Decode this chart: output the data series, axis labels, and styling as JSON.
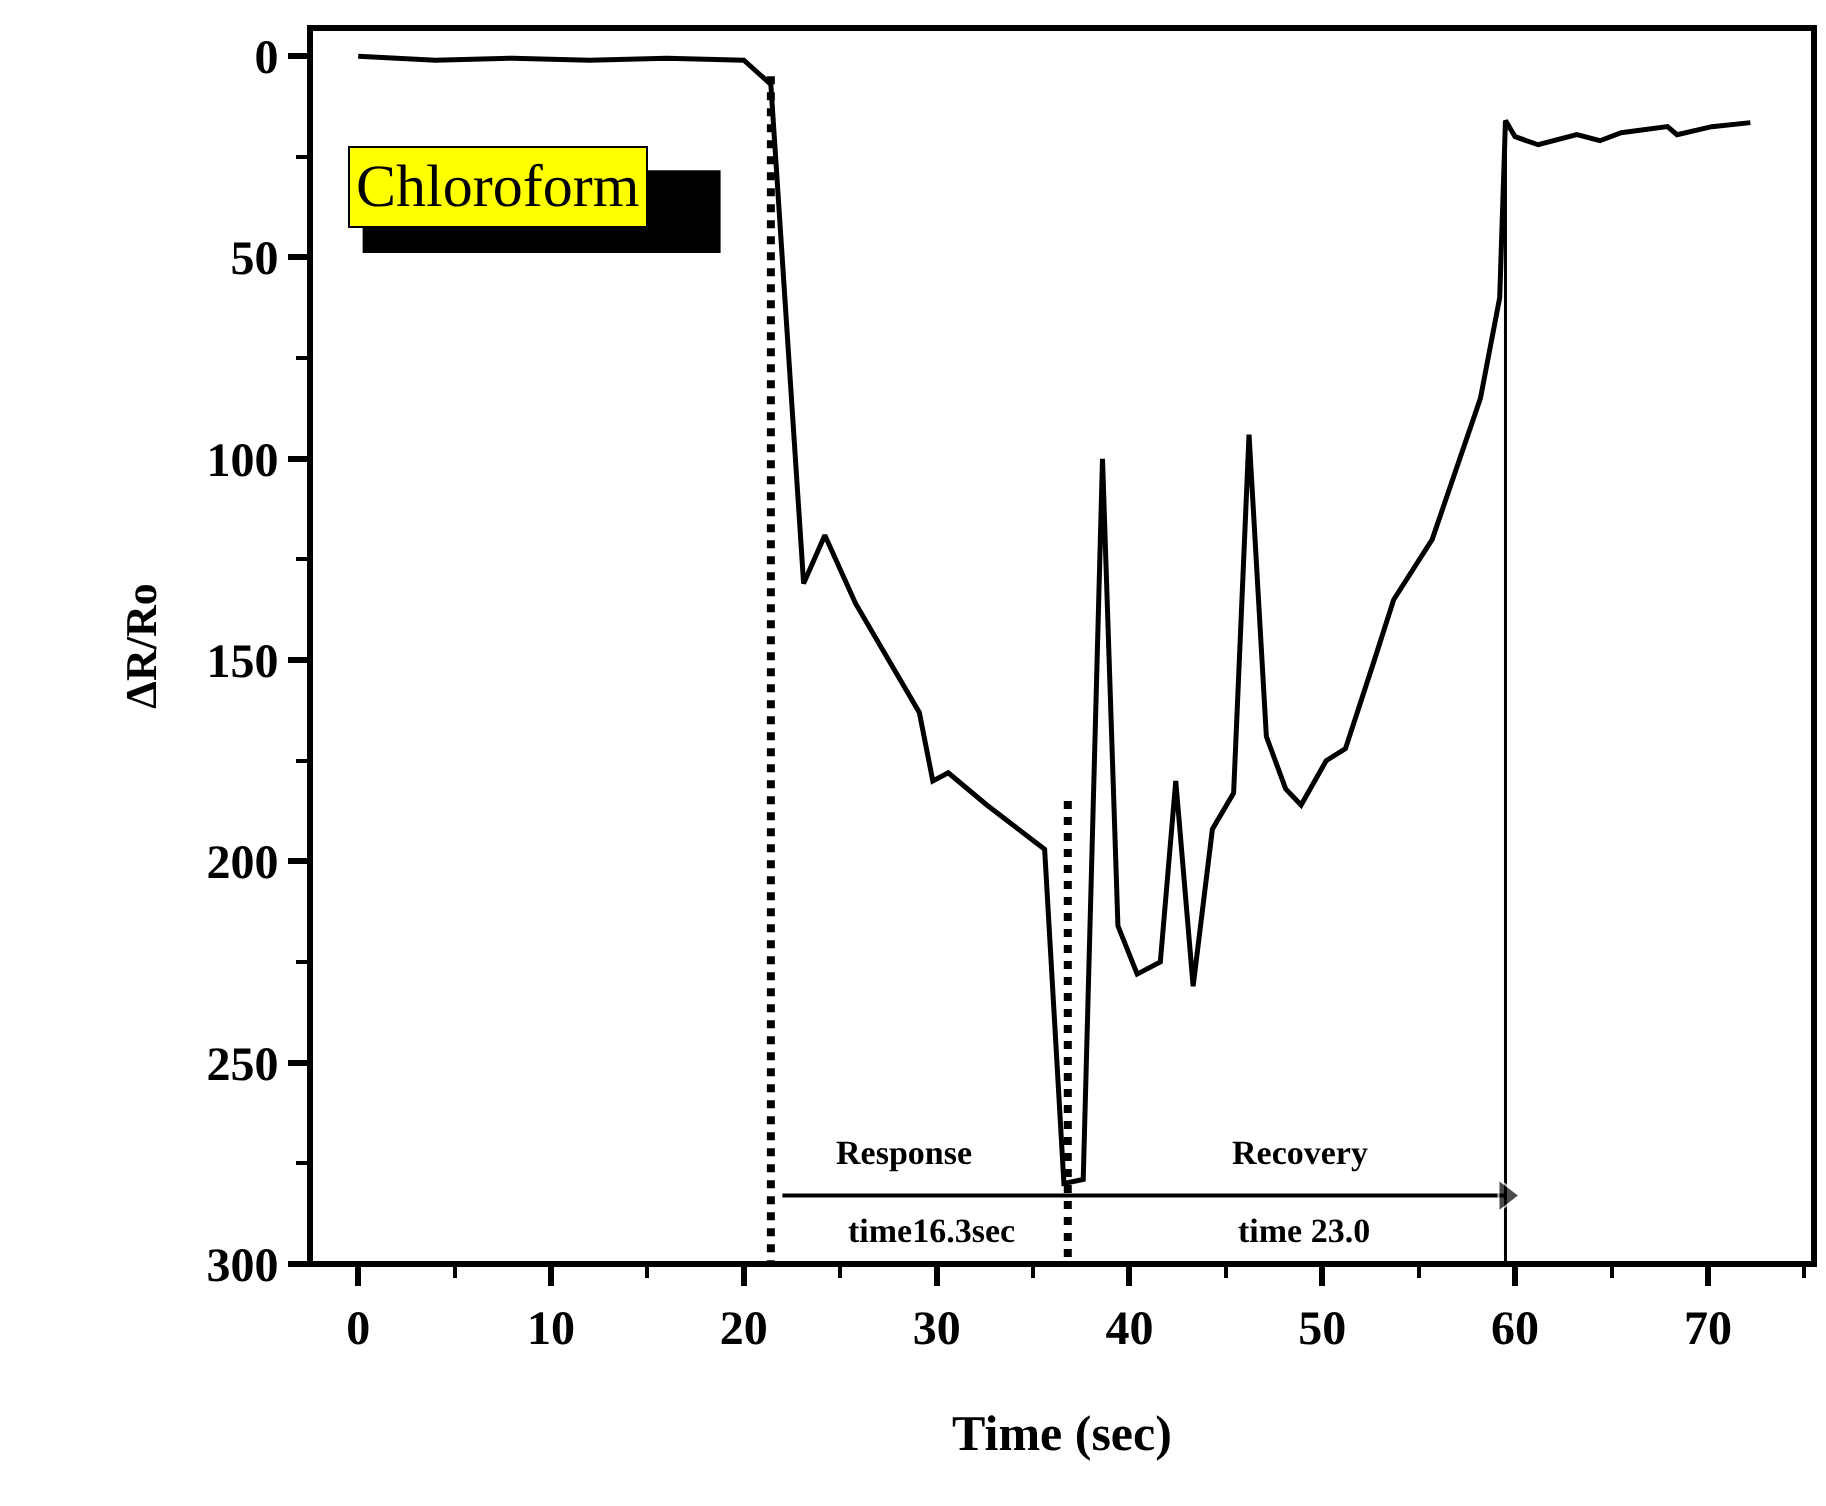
{
  "chart_data": {
    "type": "line",
    "xlabel": "Time (sec)",
    "ylabel": "ΔR/Ro",
    "xlim": [
      -2.5,
      75.5
    ],
    "xticks": [
      0,
      10,
      20,
      30,
      40,
      50,
      60,
      70
    ],
    "ylim": [
      300,
      -7
    ],
    "yticks": [
      0,
      50,
      100,
      150,
      200,
      250,
      300
    ],
    "series": [
      {
        "color": "#000000",
        "x": [
          0,
          4,
          8,
          12,
          16,
          20,
          21.4,
          23.1,
          24.2,
          25.8,
          29.1,
          29.8,
          30.6,
          32.6,
          35.6,
          36.6,
          37.6,
          38.6,
          39.4,
          40.4,
          41.6,
          42.4,
          43.3,
          44.3,
          45.4,
          46.2,
          47.1,
          48.1,
          48.9,
          50.2,
          51.2,
          52.7,
          53.7,
          55.7,
          58.2,
          59.2,
          59.5,
          60,
          61.2,
          63.2,
          64.4,
          65.5,
          67.9,
          68.4,
          70.2,
          72.2
        ],
        "values": [
          0,
          1,
          0.5,
          1,
          0.5,
          1,
          7,
          131,
          119,
          136,
          163,
          180,
          178,
          186,
          197,
          280,
          279,
          100,
          216,
          228,
          225,
          180,
          231,
          192,
          183,
          94,
          169,
          182,
          186,
          175,
          172,
          150,
          135,
          120,
          85,
          60,
          16,
          20,
          22,
          19.5,
          21,
          19,
          17.5,
          19.5,
          17.5,
          16.5
        ]
      },
      {
        "type": "line",
        "line_style": "dotted",
        "color": "#000000",
        "x": [
          21.4,
          21.4
        ],
        "values": [
          5,
          300
        ]
      },
      {
        "type": "line",
        "line_style": "dotted",
        "color": "#000000",
        "x": [
          36.8,
          36.8
        ],
        "values": [
          185,
          300
        ]
      },
      {
        "type": "line",
        "line_style": "solid",
        "color": "#000000",
        "x": [
          59.5,
          59.5
        ],
        "values": [
          16,
          300
        ]
      },
      {
        "type": "line",
        "marker": "triangle",
        "color": "#000000",
        "x": [
          22,
          59.5
        ],
        "values": [
          283,
          283
        ]
      }
    ],
    "annotations": [
      {
        "text": "Chloroform"
      },
      "Response",
      "time16.3sec",
      "Recovery",
      "time 23.0"
    ]
  }
}
